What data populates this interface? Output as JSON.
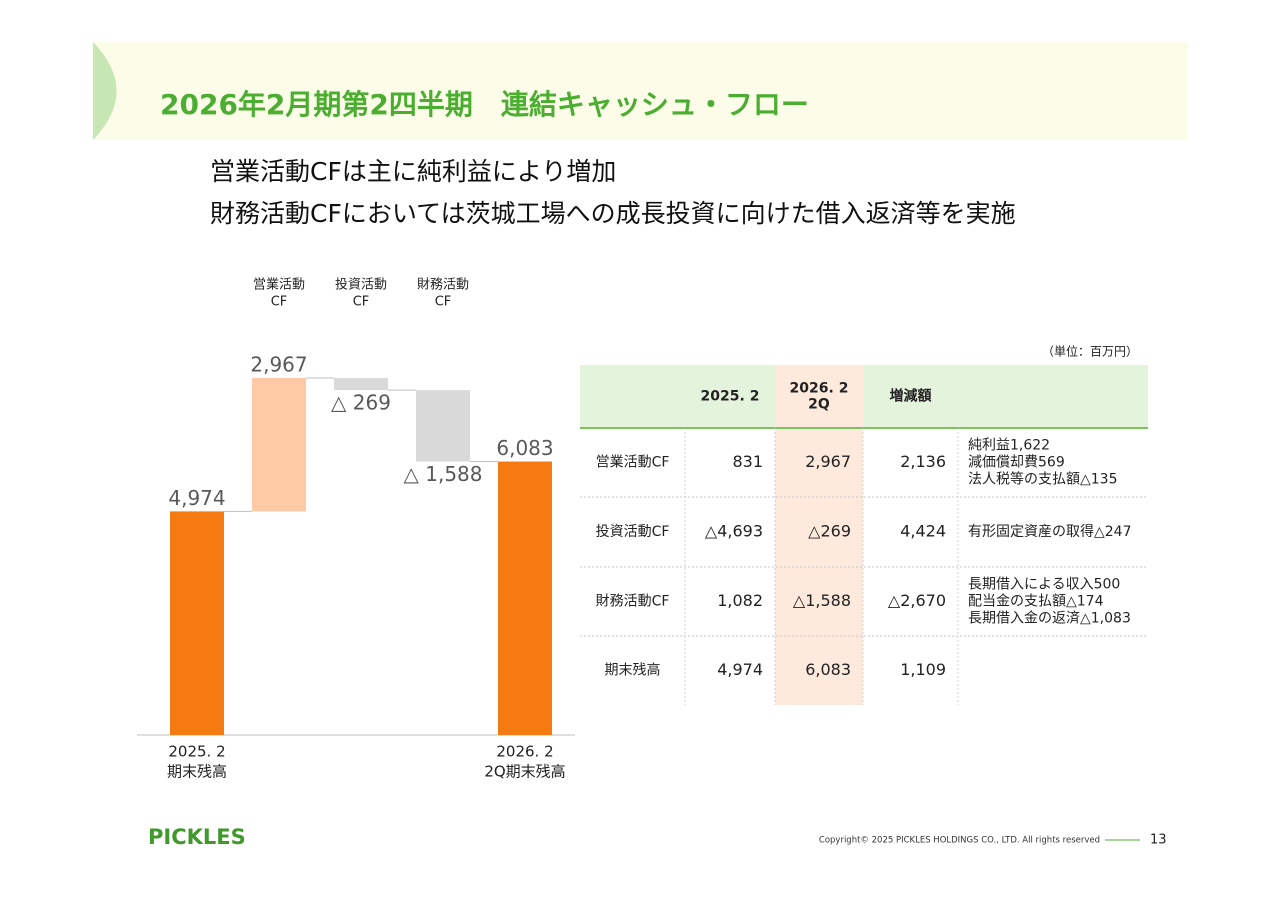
{
  "header": {
    "title": "2026年2月期第2四半期　連結キャッシュ・フロー"
  },
  "summary": [
    "営業活動CFは主に純利益により増加",
    "財務活動CFにおいては茨城工場への成長投資に向けた借入返済等を実施"
  ],
  "chart_data": {
    "type": "waterfall",
    "categories": [
      [
        "2025. 2",
        "期末残高"
      ],
      [
        "営業活動",
        "CF"
      ],
      [
        "投資活動",
        "CF"
      ],
      [
        "財務活動",
        "CF"
      ],
      [
        "2026. 2",
        "2Q期末残高"
      ]
    ],
    "values": [
      4974,
      2967,
      -269,
      -1588,
      6083
    ],
    "value_labels": [
      "4,974",
      "2,967",
      "△ 269",
      "△ 1,588",
      "6,083"
    ],
    "colors": [
      "#f57a12",
      "#fccaa4",
      "#d9d9d9",
      "#d9d9d9",
      "#f57a12"
    ]
  },
  "table": {
    "unit": "（単位：百万円）",
    "header": [
      [
        "2025. 2"
      ],
      [
        "2026. 2",
        "2Q"
      ],
      [
        "増減額"
      ]
    ],
    "rows": [
      {
        "label": "営業活動CF",
        "cells": [
          "831",
          "2,967",
          "2,136"
        ],
        "note": [
          "純利益1,622",
          "減価償却費569",
          "法人税等の支払額△135"
        ]
      },
      {
        "label": "投資活動CF",
        "cells": [
          "△4,693",
          "△269",
          "4,424"
        ],
        "note": [
          "有形固定資産の取得△247"
        ]
      },
      {
        "label": "財務活動CF",
        "cells": [
          "1,082",
          "△1,588",
          "△2,670"
        ],
        "note": [
          "長期借入による収入500",
          "配当金の支払額△174",
          "長期借入金の返済△1,083"
        ]
      },
      {
        "label": "期末残高",
        "cells": [
          "4,974",
          "6,083",
          "1,109"
        ]
      }
    ]
  },
  "footer": {
    "logo": "PICKLES",
    "copyright": "Copyright© 2025 PICKLES HOLDINGS CO., LTD. All rights reserved",
    "page": "13"
  }
}
